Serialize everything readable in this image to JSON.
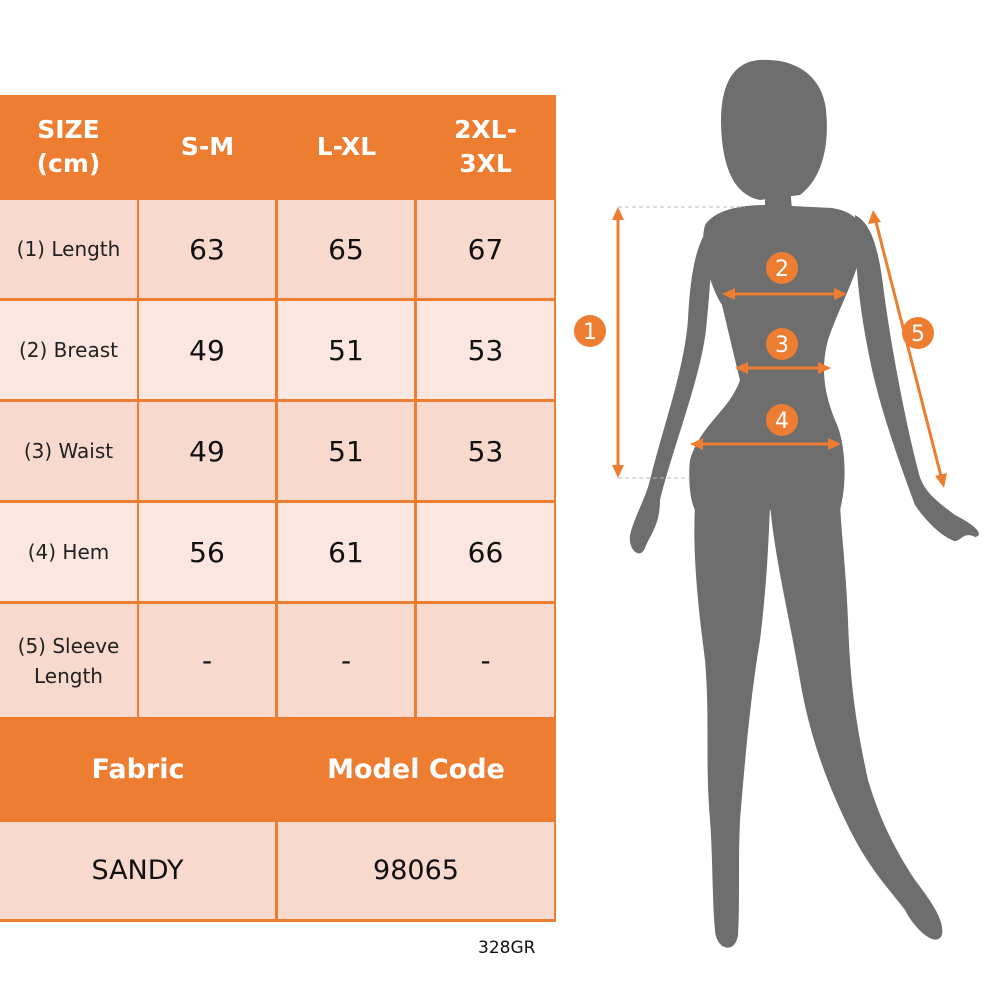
{
  "colors": {
    "accent": "#ED7D31",
    "cell": "#F7D9CE",
    "cell_light": "#FBE7E0",
    "silhouette": "#6E6E6E"
  },
  "table": {
    "header": [
      "SIZE\n(cm)",
      "S-M",
      "L-XL",
      "2XL-\n3XL"
    ],
    "rows": [
      {
        "label": "(1) Length",
        "values": [
          "63",
          "65",
          "67"
        ]
      },
      {
        "label": "(2) Breast",
        "values": [
          "49",
          "51",
          "53"
        ]
      },
      {
        "label": "(3) Waist",
        "values": [
          "49",
          "51",
          "53"
        ]
      },
      {
        "label": "(4) Hem",
        "values": [
          "56",
          "61",
          "66"
        ]
      },
      {
        "label": "(5) Sleeve\nLength",
        "values": [
          "-",
          "-",
          "-"
        ]
      }
    ]
  },
  "footer": {
    "headers": [
      "Fabric",
      "Model Code"
    ],
    "values": [
      "SANDY",
      "98065"
    ]
  },
  "product_code": "328GR",
  "figure": {
    "markers": [
      "1",
      "2",
      "3",
      "4",
      "5"
    ]
  }
}
